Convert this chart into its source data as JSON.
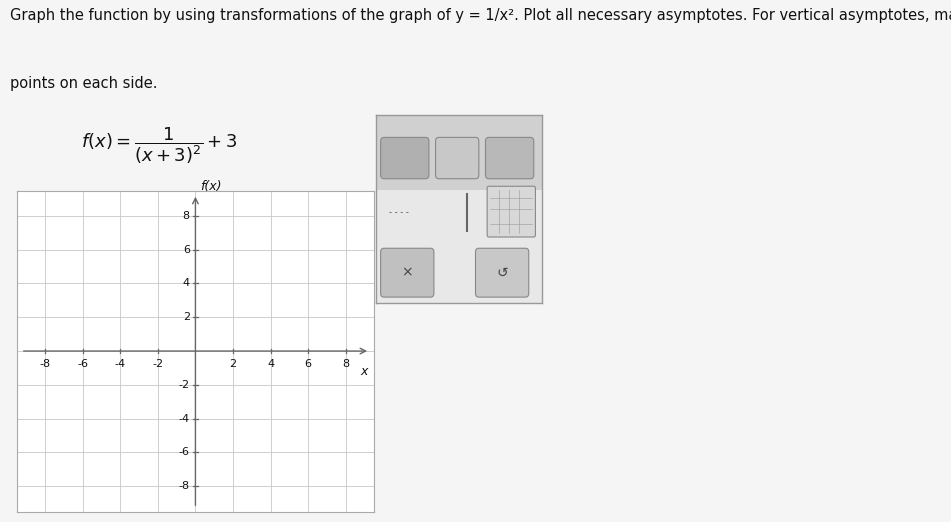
{
  "title_line1": "Graph the function by using transformations of the graph of y = 1/x². Plot all necessary asymptotes. For vertical asymptotes, make sure there are at least two",
  "title_line2": "points on each side.",
  "formula": "$f(x)=\\dfrac{1}{(x+3)^2}+3$",
  "xlabel": "x",
  "ylabel": "f(x)",
  "xlim": [
    -9.5,
    9.5
  ],
  "ylim": [
    -9.5,
    9.5
  ],
  "xticks": [
    -8,
    -6,
    -4,
    -2,
    2,
    4,
    6,
    8
  ],
  "yticks": [
    -8,
    -6,
    -4,
    -2,
    2,
    4,
    6,
    8
  ],
  "grid_color": "#c8c8c8",
  "axis_color": "#666666",
  "background_color": "#f5f5f5",
  "plot_bg": "#ffffff",
  "box_color": "#aaaaaa",
  "text_color": "#111111",
  "title_fontsize": 10.5,
  "formula_fontsize": 13,
  "tick_fontsize": 8,
  "axis_label_fontsize": 9,
  "fig_width": 9.51,
  "fig_height": 5.22
}
